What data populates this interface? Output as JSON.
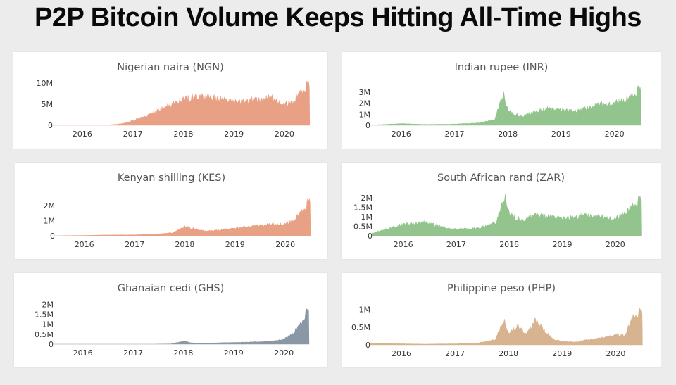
{
  "title": "P2P Bitcoin Volume Keeps Hitting All-Time Highs",
  "chart_data": [
    {
      "type": "area",
      "title": "Nigerian naira (NGN)",
      "color": "#e8a185",
      "x_ticks": [
        "2016",
        "2017",
        "2018",
        "2019",
        "2020"
      ],
      "y_ticks": [
        "0",
        "5M",
        "10M"
      ],
      "ylim": [
        0,
        11000000
      ],
      "series": [
        {
          "x": [
            "2015-06",
            "2016-01",
            "2016-06",
            "2016-10",
            "2016-12",
            "2017-03",
            "2017-06",
            "2017-09",
            "2018-01",
            "2018-04",
            "2018-07",
            "2018-10",
            "2019-01",
            "2019-04",
            "2019-07",
            "2019-10",
            "2020-01",
            "2020-03",
            "2020-05",
            "2020-07"
          ],
          "values": [
            0,
            0,
            0,
            300000,
            800000,
            1800000,
            3000000,
            4500000,
            6000000,
            6800000,
            6700000,
            6000000,
            5500000,
            5800000,
            6200000,
            6500000,
            5000000,
            5200000,
            8000000,
            10200000
          ]
        }
      ]
    },
    {
      "type": "area",
      "title": "Indian rupee (INR)",
      "color": "#93c48e",
      "x_ticks": [
        "2016",
        "2017",
        "2018",
        "2019",
        "2020"
      ],
      "y_ticks": [
        "0",
        "1M",
        "2M",
        "3M"
      ],
      "ylim": [
        0,
        3700000
      ],
      "series": [
        {
          "x": [
            "2015-06",
            "2016-01",
            "2016-06",
            "2016-12",
            "2017-06",
            "2017-10",
            "2017-12",
            "2018-01",
            "2018-04",
            "2018-07",
            "2018-10",
            "2019-01",
            "2019-04",
            "2019-07",
            "2019-10",
            "2020-01",
            "2020-04",
            "2020-07"
          ],
          "values": [
            20000,
            150000,
            80000,
            100000,
            200000,
            500000,
            2900000,
            1300000,
            800000,
            1200000,
            1500000,
            1400000,
            1300000,
            1600000,
            1900000,
            2000000,
            2300000,
            3500000
          ]
        }
      ]
    },
    {
      "type": "area",
      "title": "Kenyan shilling (KES)",
      "color": "#e8a185",
      "x_ticks": [
        "2016",
        "2017",
        "2018",
        "2019",
        "2020"
      ],
      "y_ticks": [
        "0",
        "1M",
        "2M"
      ],
      "ylim": [
        0,
        2800000
      ],
      "series": [
        {
          "x": [
            "2015-06",
            "2016-01",
            "2016-06",
            "2017-01",
            "2017-06",
            "2017-10",
            "2018-01",
            "2018-03",
            "2018-06",
            "2018-10",
            "2019-01",
            "2019-04",
            "2019-07",
            "2019-10",
            "2020-01",
            "2020-03",
            "2020-05",
            "2020-07"
          ],
          "values": [
            0,
            20000,
            50000,
            60000,
            100000,
            200000,
            600000,
            500000,
            300000,
            400000,
            500000,
            600000,
            700000,
            750000,
            800000,
            1000000,
            1600000,
            2500000
          ]
        }
      ]
    },
    {
      "type": "area",
      "title": "South African rand (ZAR)",
      "color": "#93c48e",
      "x_ticks": [
        "2016",
        "2017",
        "2018",
        "2019",
        "2020"
      ],
      "y_ticks": [
        "0",
        "0.5M",
        "1M",
        "1.5M",
        "2M"
      ],
      "ylim": [
        0,
        2300000
      ],
      "series": [
        {
          "x": [
            "2015-06",
            "2015-10",
            "2016-01",
            "2016-06",
            "2016-10",
            "2017-01",
            "2017-06",
            "2017-10",
            "2017-12",
            "2018-01",
            "2018-04",
            "2018-07",
            "2018-10",
            "2019-01",
            "2019-04",
            "2019-07",
            "2019-10",
            "2020-01",
            "2020-04",
            "2020-07"
          ],
          "values": [
            150000,
            400000,
            600000,
            700000,
            450000,
            350000,
            400000,
            700000,
            2100000,
            1100000,
            800000,
            1100000,
            1000000,
            900000,
            1000000,
            1100000,
            1000000,
            900000,
            1300000,
            2100000
          ]
        }
      ]
    },
    {
      "type": "area",
      "title": "Ghanaian cedi (GHS)",
      "color": "#8a97a5",
      "x_ticks": [
        "2016",
        "2017",
        "2018",
        "2019",
        "2020"
      ],
      "y_ticks": [
        "0",
        "0.5M",
        "1M",
        "1.5M",
        "2M"
      ],
      "ylim": [
        0,
        2300000
      ],
      "series": [
        {
          "x": [
            "2015-06",
            "2017-06",
            "2017-10",
            "2018-01",
            "2018-04",
            "2018-07",
            "2018-10",
            "2019-01",
            "2019-04",
            "2019-07",
            "2019-10",
            "2020-01",
            "2020-03",
            "2020-05",
            "2020-07"
          ],
          "values": [
            0,
            0,
            10000,
            150000,
            30000,
            50000,
            70000,
            80000,
            100000,
            120000,
            150000,
            250000,
            500000,
            1000000,
            1900000
          ]
        }
      ]
    },
    {
      "type": "area",
      "title": "Philippine peso (PHP)",
      "color": "#d7b48f",
      "x_ticks": [
        "2016",
        "2017",
        "2018",
        "2019",
        "2020"
      ],
      "y_ticks": [
        "0",
        "0.5M",
        "1M"
      ],
      "ylim": [
        0,
        1150000
      ],
      "series": [
        {
          "x": [
            "2015-06",
            "2016-01",
            "2016-06",
            "2017-01",
            "2017-06",
            "2017-10",
            "2017-12",
            "2018-01",
            "2018-03",
            "2018-05",
            "2018-07",
            "2018-09",
            "2018-11",
            "2019-01",
            "2019-04",
            "2019-07",
            "2019-10",
            "2020-01",
            "2020-03",
            "2020-05",
            "2020-07"
          ],
          "values": [
            50000,
            30000,
            20000,
            30000,
            50000,
            150000,
            700000,
            300000,
            550000,
            300000,
            700000,
            400000,
            150000,
            100000,
            80000,
            150000,
            200000,
            300000,
            250000,
            800000,
            1000000
          ]
        }
      ]
    }
  ]
}
